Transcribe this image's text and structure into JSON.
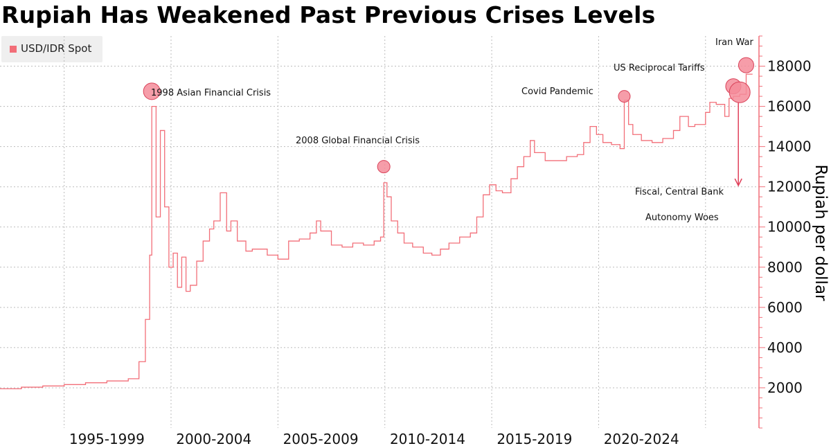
{
  "chart_data": {
    "type": "line",
    "title": "Rupiah Has Weakened Past Previous Crises Levels",
    "subtitle": "",
    "xlabel": "",
    "ylabel": "Rupiah per dollar",
    "y_axis_side": "right",
    "ylim": [
      0,
      19500
    ],
    "xlim": [
      1991,
      2026.5
    ],
    "y_ticks": [
      2000,
      4000,
      6000,
      8000,
      10000,
      12000,
      14000,
      16000,
      18000
    ],
    "x_tick_labels": [
      "1995-1999",
      "2000-2004",
      "2005-2009",
      "2010-2014",
      "2015-2019",
      "2020-2024"
    ],
    "x_tick_centers": [
      1996,
      2001,
      2006,
      2011,
      2016,
      2021
    ],
    "x_grid_lines": [
      1994,
      1999,
      2004,
      2009,
      2014,
      2019,
      2024
    ],
    "grid": true,
    "legend": {
      "position": "top-left",
      "entries": [
        "USD/IDR Spot"
      ]
    },
    "colors": {
      "series": "#f26e78",
      "marker_fill": "#f58c9a",
      "marker_stroke": "#d9435a",
      "grid": "#bbbbbb"
    },
    "series": [
      {
        "name": "USD/IDR Spot",
        "x": [
          1991.0,
          1992.0,
          1993.0,
          1994.0,
          1995.0,
          1996.0,
          1997.0,
          1997.5,
          1997.8,
          1998.0,
          1998.1,
          1998.3,
          1998.5,
          1998.7,
          1998.9,
          1999.1,
          1999.3,
          1999.5,
          1999.7,
          1999.9,
          2000.2,
          2000.5,
          2000.8,
          2001.0,
          2001.3,
          2001.6,
          2001.8,
          2002.1,
          2002.5,
          2002.8,
          2003.0,
          2003.5,
          2004.0,
          2004.5,
          2005.0,
          2005.5,
          2005.8,
          2006.0,
          2006.5,
          2007.0,
          2007.5,
          2008.0,
          2008.5,
          2008.8,
          2008.95,
          2009.1,
          2009.3,
          2009.6,
          2009.9,
          2010.3,
          2010.8,
          2011.2,
          2011.6,
          2012.0,
          2012.5,
          2013.0,
          2013.3,
          2013.6,
          2013.9,
          2014.2,
          2014.5,
          2014.9,
          2015.2,
          2015.5,
          2015.8,
          2016.0,
          2016.5,
          2017.0,
          2017.5,
          2018.0,
          2018.3,
          2018.6,
          2018.9,
          2019.2,
          2019.6,
          2020.0,
          2020.2,
          2020.4,
          2020.6,
          2021.0,
          2021.5,
          2022.0,
          2022.5,
          2022.8,
          2023.2,
          2023.5,
          2024.0,
          2024.2,
          2024.5,
          2024.9,
          2025.1,
          2025.3,
          2025.6,
          2025.9
        ],
        "y": [
          1950,
          2030,
          2090,
          2160,
          2250,
          2340,
          2450,
          3300,
          5400,
          8600,
          16000,
          10500,
          14800,
          11000,
          8000,
          8700,
          7000,
          8500,
          6800,
          7100,
          8300,
          9300,
          9900,
          10300,
          11700,
          9800,
          10300,
          9300,
          8800,
          8900,
          8900,
          8600,
          8400,
          9300,
          9400,
          9700,
          10300,
          9800,
          9100,
          9000,
          9200,
          9100,
          9300,
          9500,
          12200,
          11500,
          10300,
          9700,
          9200,
          9000,
          8700,
          8600,
          8900,
          9200,
          9500,
          9700,
          10500,
          11600,
          12100,
          11800,
          11700,
          12400,
          13000,
          13500,
          14300,
          13700,
          13300,
          13300,
          13500,
          13600,
          14200,
          15000,
          14600,
          14200,
          14100,
          13900,
          16300,
          15100,
          14600,
          14300,
          14200,
          14400,
          14800,
          15500,
          15000,
          15100,
          15700,
          16200,
          16100,
          15500,
          16400,
          16500,
          16600,
          17600
        ]
      }
    ],
    "annotations": [
      {
        "text": "1998 Asian Financial Crisis",
        "x": 1998.1,
        "y": 16750
      },
      {
        "text": "2008 Global Financial Crisis",
        "x": 2008.95,
        "y": 13000
      },
      {
        "text": "Covid Pandemic",
        "x": 2020.2,
        "y": 16500
      },
      {
        "text": "US Reciprocal Tariffs",
        "x": 2025.3,
        "y": 17000
      },
      {
        "text": "Iran War",
        "x": 2025.9,
        "y": 18050
      },
      {
        "text": "Fiscal, Central Bank",
        "x": 2025.6,
        "y": 16700
      },
      {
        "text": "Autonomy Woes",
        "x": 2025.6,
        "y": 16700
      }
    ]
  }
}
